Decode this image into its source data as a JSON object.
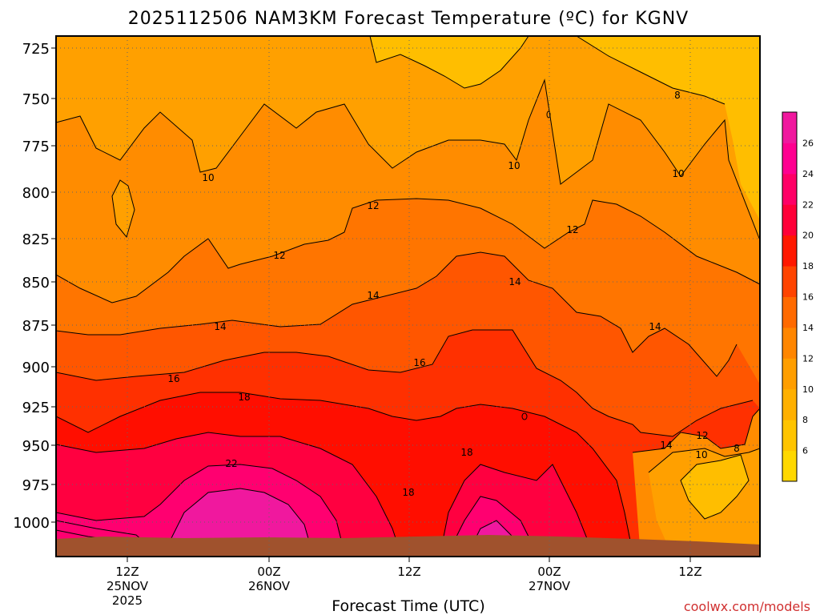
{
  "chart_data": {
    "type": "heatmap",
    "title": "2025112506 NAM3KM Forecast Temperature (ºC) for KGNV",
    "xlabel": "Forecast Time (UTC)",
    "y_ticks": [
      "725",
      "750",
      "775",
      "800",
      "825",
      "850",
      "875",
      "900",
      "925",
      "950",
      "975",
      "1000"
    ],
    "x_ticks": [
      {
        "lines": [
          "12Z",
          "25NOV",
          "2025"
        ]
      },
      {
        "lines": [
          "00Z",
          "26NOV"
        ]
      },
      {
        "lines": [
          "12Z"
        ]
      },
      {
        "lines": [
          "00Z",
          "27NOV"
        ]
      },
      {
        "lines": [
          "12Z"
        ]
      }
    ],
    "colorbar": {
      "labels": [
        "6",
        "8",
        "10",
        "12",
        "14",
        "16",
        "18",
        "20",
        "22",
        "24",
        "26"
      ],
      "colors": [
        "#ffd800",
        "#ffc400",
        "#ffb000",
        "#ff9e00",
        "#ff8600",
        "#ff6a00",
        "#ff4400",
        "#ff1800",
        "#ff0038",
        "#ff0066",
        "#ff0090",
        "#f0189e"
      ]
    },
    "contour_labels": [
      {
        "text": "10"
      },
      {
        "text": "10"
      },
      {
        "text": "10"
      },
      {
        "text": "8"
      },
      {
        "text": "12"
      },
      {
        "text": "12"
      },
      {
        "text": "12"
      },
      {
        "text": "14"
      },
      {
        "text": "14"
      },
      {
        "text": "14"
      },
      {
        "text": "14"
      },
      {
        "text": "14"
      },
      {
        "text": "16"
      },
      {
        "text": "16"
      },
      {
        "text": "18"
      },
      {
        "text": "18"
      },
      {
        "text": "18"
      },
      {
        "text": "22"
      },
      {
        "text": "12"
      },
      {
        "text": "10"
      },
      {
        "text": "8"
      }
    ],
    "ground_color": "#a0522d",
    "grid": true
  },
  "credit": "coolwx.com/models"
}
